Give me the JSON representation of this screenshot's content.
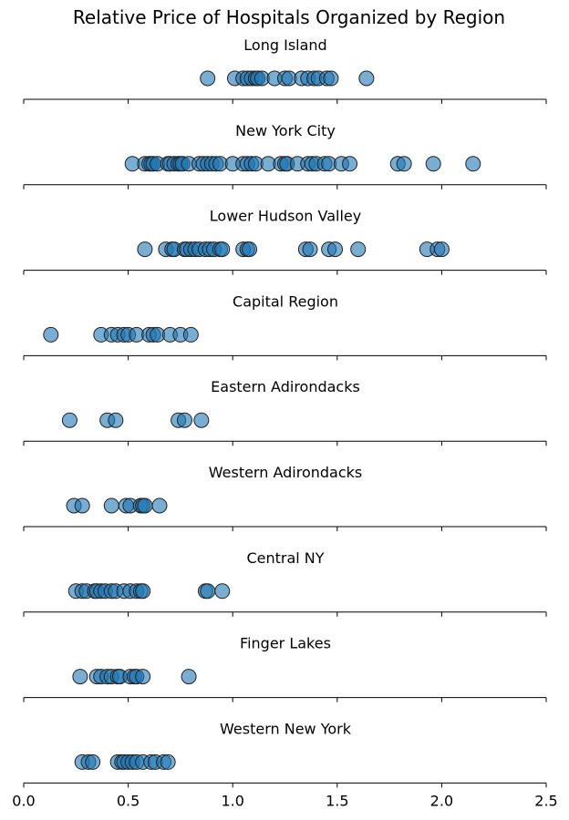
{
  "chart_data": {
    "type": "scatter",
    "title": "Relative Price of Hospitals Organized by Region",
    "xlim": [
      0.0,
      2.5
    ],
    "x_ticks": [
      "0.0",
      "0.5",
      "1.0",
      "1.5",
      "2.0",
      "2.5"
    ],
    "grid": false,
    "point_color": "#1f77b4",
    "point_edge_color": "#222222",
    "point_alpha": 0.6,
    "panels": [
      {
        "name": "Long Island",
        "x": [
          0.88,
          1.01,
          1.05,
          1.07,
          1.09,
          1.11,
          1.12,
          1.14,
          1.2,
          1.25,
          1.27,
          1.33,
          1.36,
          1.39,
          1.41,
          1.45,
          1.47,
          1.64
        ]
      },
      {
        "name": "New York City",
        "x": [
          0.52,
          0.58,
          0.6,
          0.61,
          0.62,
          0.64,
          0.69,
          0.7,
          0.72,
          0.74,
          0.75,
          0.76,
          0.79,
          0.84,
          0.86,
          0.88,
          0.9,
          0.92,
          0.94,
          1.0,
          1.05,
          1.07,
          1.09,
          1.11,
          1.17,
          1.23,
          1.25,
          1.26,
          1.31,
          1.36,
          1.38,
          1.4,
          1.44,
          1.46,
          1.52,
          1.56,
          1.79,
          1.82,
          1.96,
          2.15
        ]
      },
      {
        "name": "Lower Hudson Valley",
        "x": [
          0.58,
          0.68,
          0.71,
          0.72,
          0.77,
          0.78,
          0.8,
          0.82,
          0.84,
          0.87,
          0.89,
          0.91,
          0.94,
          0.95,
          1.05,
          1.07,
          1.08,
          1.35,
          1.37,
          1.46,
          1.49,
          1.6,
          1.93,
          1.98,
          2.0
        ]
      },
      {
        "name": "Capital Region",
        "x": [
          0.13,
          0.37,
          0.42,
          0.45,
          0.48,
          0.5,
          0.54,
          0.6,
          0.62,
          0.64,
          0.7,
          0.75,
          0.8
        ]
      },
      {
        "name": "Eastern Adirondacks",
        "x": [
          0.22,
          0.4,
          0.44,
          0.74,
          0.77,
          0.85
        ]
      },
      {
        "name": "Western Adirondacks",
        "x": [
          0.24,
          0.28,
          0.42,
          0.49,
          0.51,
          0.56,
          0.57,
          0.58,
          0.65
        ]
      },
      {
        "name": "Central NY",
        "x": [
          0.25,
          0.28,
          0.3,
          0.34,
          0.35,
          0.37,
          0.39,
          0.42,
          0.44,
          0.48,
          0.51,
          0.54,
          0.56,
          0.57,
          0.87,
          0.88,
          0.95
        ]
      },
      {
        "name": "Finger Lakes",
        "x": [
          0.27,
          0.35,
          0.37,
          0.4,
          0.42,
          0.45,
          0.46,
          0.51,
          0.53,
          0.54,
          0.57,
          0.79
        ]
      },
      {
        "name": "Western New York",
        "x": [
          0.28,
          0.31,
          0.33,
          0.45,
          0.47,
          0.48,
          0.5,
          0.52,
          0.54,
          0.57,
          0.61,
          0.63,
          0.67,
          0.69
        ]
      }
    ]
  }
}
